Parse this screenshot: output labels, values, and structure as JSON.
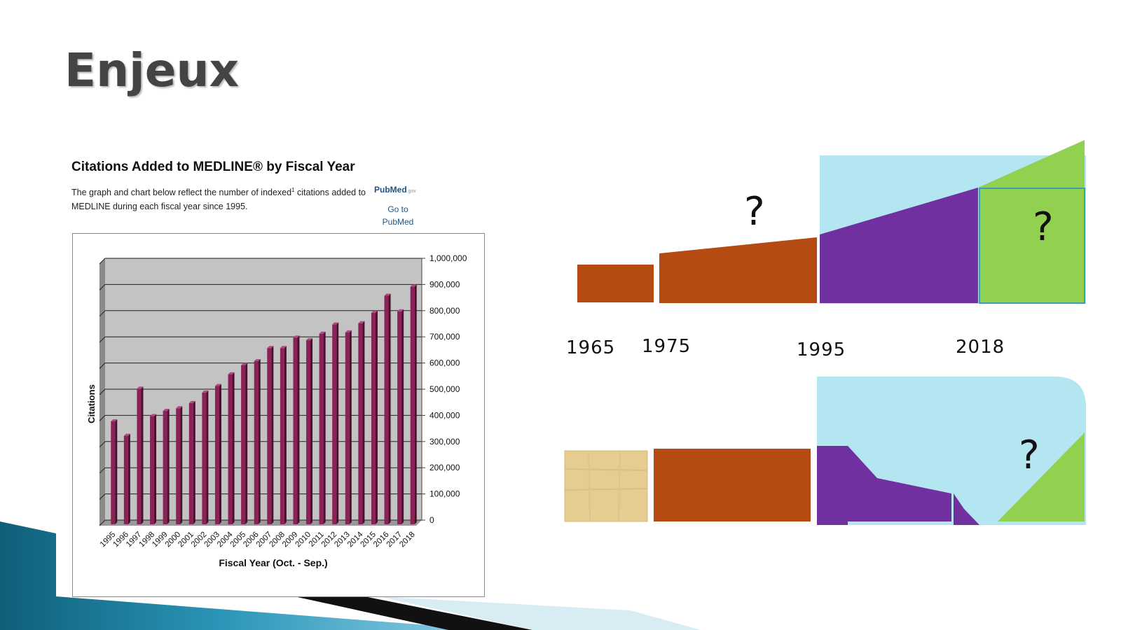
{
  "slide": {
    "title": "Enjeux"
  },
  "medline": {
    "title": "Citations Added to MEDLINE® by Fiscal Year",
    "desc_part1": "The graph and chart below reflect the number of indexed",
    "desc_sup": "1",
    "desc_part2": " citations added to MEDLINE during each fiscal year since 1995.",
    "logo_text": "PubMed",
    "logo_suffix": ".gov",
    "link_line1": "Go to",
    "link_line2": "PubMed"
  },
  "chart_data": {
    "type": "bar",
    "title": "",
    "xlabel": "Fiscal Year (Oct. - Sep.)",
    "ylabel": "Citations",
    "categories": [
      "1995",
      "1996",
      "1997",
      "1998",
      "1999",
      "2000",
      "2001",
      "2002",
      "2003",
      "2004",
      "2005",
      "2006",
      "2007",
      "2008",
      "2009",
      "2010",
      "2011",
      "2012",
      "2013",
      "2014",
      "2015",
      "2016",
      "2017",
      "2018"
    ],
    "values": [
      385000,
      330000,
      510000,
      405000,
      425000,
      435000,
      455000,
      495000,
      520000,
      565000,
      600000,
      615000,
      665000,
      665000,
      705000,
      695000,
      720000,
      755000,
      725000,
      760000,
      800000,
      865000,
      805000,
      900000
    ],
    "ylim": [
      0,
      1000000
    ],
    "yticks": [
      "0",
      "100,000",
      "200,000",
      "300,000",
      "400,000",
      "500,000",
      "600,000",
      "700,000",
      "800,000",
      "900,000",
      "1,000,000"
    ],
    "grid": true,
    "colors": {
      "bar": "#8a2257",
      "bar_dark": "#4a0f2d",
      "plot_bg": "#c3c3c3",
      "wall_dark": "#8a8a8a"
    }
  },
  "timeline": {
    "labels": [
      "1965",
      "1975",
      "1995",
      "2018"
    ],
    "question_marks": [
      "?",
      "?",
      "?"
    ],
    "colors": {
      "print_era": "#b54a12",
      "digital_era": "#7030a0",
      "future": "#92d050",
      "sky": "#b4e6f2",
      "papyrus": "#e6cc8f"
    }
  }
}
